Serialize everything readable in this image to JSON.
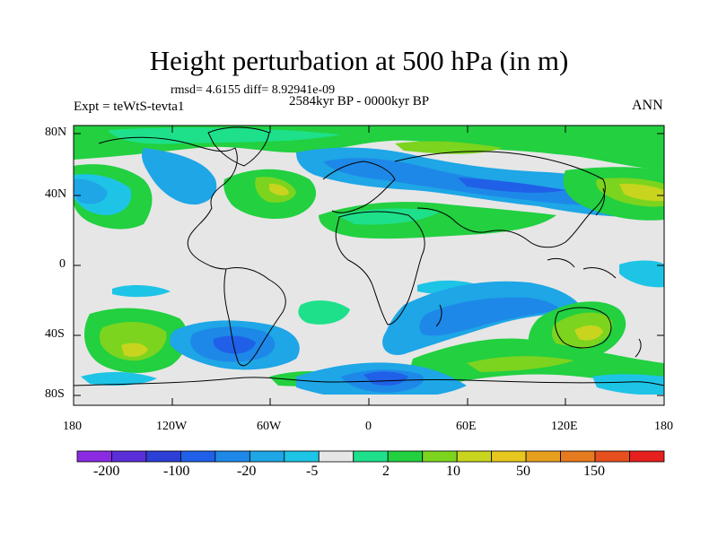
{
  "title": "Height perturbation at 500 hPa (in m)",
  "stats": "rmsd= 4.6155 diff= 8.92941e-09",
  "period": "2584kyr BP - 0000kyr BP",
  "experiment": "Expt = teWtS-tevta1",
  "season": "ANN",
  "lat_ticks": [
    "80N",
    "40N",
    "0",
    "40S",
    "80S"
  ],
  "lon_ticks": [
    "180",
    "120W",
    "60W",
    "0",
    "60E",
    "120E",
    "180"
  ],
  "colorbar": {
    "labels": [
      "-200",
      "-100",
      "-20",
      "-5",
      "2",
      "10",
      "50",
      "150"
    ],
    "colors": [
      "#8a2be2",
      "#5a2fd8",
      "#2c3fd6",
      "#2060e8",
      "#1e88e8",
      "#1ea6e6",
      "#1ec4e6",
      "#e6e6e6",
      "#1ee08a",
      "#22d040",
      "#7cd41e",
      "#c8d41e",
      "#e6c81e",
      "#e6a01e",
      "#e67a1e",
      "#e6501e",
      "#e6201e"
    ]
  }
}
